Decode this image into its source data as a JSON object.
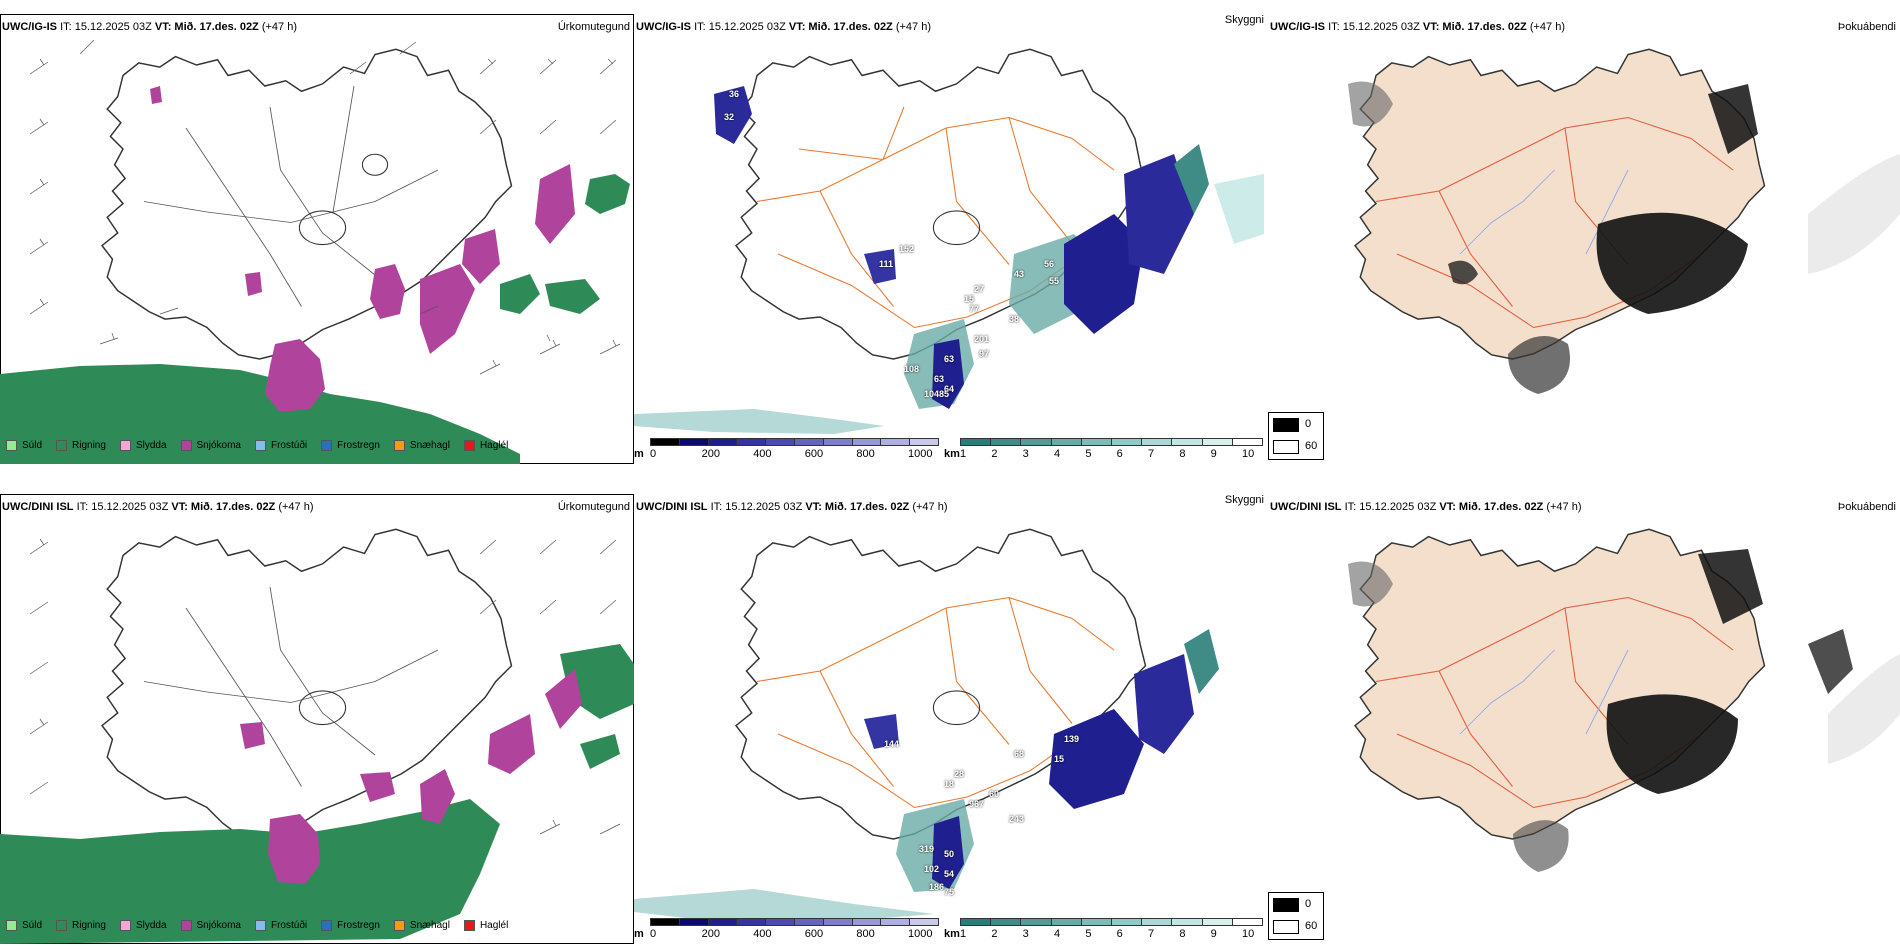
{
  "rows": [
    {
      "model": "UWC/IG-IS",
      "it": "IT: 15.12.2025 03Z",
      "vt": "VT: Mið. 17.des. 02Z",
      "lead": "(+47 h)",
      "titles": [
        "Úrkomutegund",
        "Skyggni",
        "Þokuábendi"
      ],
      "vis_labels": [
        "111",
        "152",
        "63",
        "77",
        "201",
        "38",
        "43",
        "56",
        "55",
        "97",
        "108",
        "63",
        "64",
        "104",
        "85",
        "36",
        "32",
        "27",
        "15"
      ]
    },
    {
      "model": "UWC/DINI ISL",
      "it": "IT: 15.12.2025 03Z",
      "vt": "VT: Mið. 17.des. 02Z",
      "lead": "(+47 h)",
      "titles": [
        "Úrkomutegund",
        "Skyggni",
        "Þokuábendi"
      ],
      "vis_labels": [
        "144",
        "28",
        "18",
        "60",
        "68",
        "139",
        "243",
        "967",
        "319",
        "50",
        "102",
        "54",
        "186",
        "75",
        "15"
      ]
    }
  ],
  "precip_legend": [
    {
      "label": "Súld",
      "color": "#90ee90"
    },
    {
      "label": "Rigning",
      "color": "#2e8b57"
    },
    {
      "label": "Slydda",
      "color": "#f4a6d7"
    },
    {
      "label": "Snjókoma",
      "color": "#b0439b"
    },
    {
      "label": "Frostúði",
      "color": "#87bdea"
    },
    {
      "label": "Frostregn",
      "color": "#2f6fb3"
    },
    {
      "label": "Snæhagl",
      "color": "#f39c12"
    },
    {
      "label": "Haglél",
      "color": "#e31a1c"
    }
  ],
  "vis_colorbar_m": {
    "unit": "m",
    "ticks": [
      "0",
      "200",
      "400",
      "600",
      "800",
      "1000"
    ],
    "colors": [
      "#000000",
      "#0a0a6e",
      "#1f1f8f",
      "#3434a3",
      "#4c4cb0",
      "#6565bd",
      "#7e7ec9",
      "#9797d5",
      "#b0b0e0",
      "#c9c9ec"
    ]
  },
  "vis_colorbar_km": {
    "unit": "km",
    "ticks": [
      "1",
      "2",
      "3",
      "4",
      "5",
      "6",
      "7",
      "8",
      "9",
      "10"
    ],
    "colors": [
      "#2a7d78",
      "#3f8c87",
      "#559c97",
      "#6aaba6",
      "#80bab6",
      "#95c9c5",
      "#abd8d5",
      "#c0e7e4",
      "#d6f0ee",
      "#ffffff"
    ]
  },
  "fog_legend": [
    {
      "label": "0",
      "color": "#000000"
    },
    {
      "label": "60",
      "color": "#ffffff"
    }
  ],
  "colors": {
    "rain": "#2e8b57",
    "snow": "#b0439b",
    "land_fog": "#f3dfcc",
    "roads": "#e8782a",
    "rivers": "#8fa8e8"
  }
}
